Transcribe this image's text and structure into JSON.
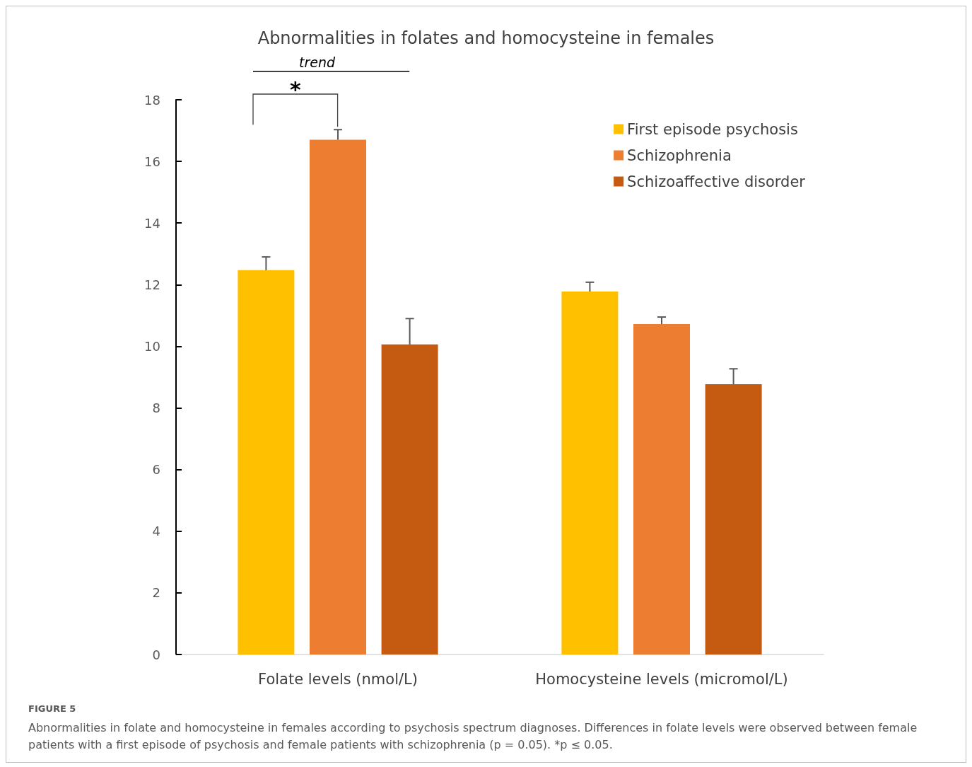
{
  "chart_data": {
    "type": "bar",
    "title": "Abnormalities in folates and homocysteine in females",
    "categories": [
      "Folate levels (nmol/L)",
      "Homocysteine levels (micromol/L)"
    ],
    "series": [
      {
        "name": "First episode psychosis",
        "color": "#ffc000",
        "values": [
          12.47,
          11.78
        ],
        "errors": [
          [
            12.47,
            12.9
          ],
          [
            11.78,
            12.08
          ]
        ]
      },
      {
        "name": "Schizophrenia",
        "color": "#ed7d31",
        "values": [
          16.7,
          10.72
        ],
        "errors": [
          [
            16.7,
            17.03
          ],
          [
            10.72,
            10.95
          ]
        ]
      },
      {
        "name": "Schizoaffective disorder",
        "color": "#c55a11",
        "values": [
          10.06,
          8.77
        ],
        "errors": [
          [
            10.06,
            10.9
          ],
          [
            8.77,
            9.27
          ]
        ]
      }
    ],
    "ylim": [
      0,
      18
    ],
    "yticks": [
      0,
      2,
      4,
      6,
      8,
      10,
      12,
      14,
      16,
      18
    ],
    "grid": false,
    "legend": "top right",
    "annotations": [
      "trend",
      "*",
      "FIGURE 5",
      "Abnormalities in folate and homocysteine in females according to psychosis spectrum diagnoses. Differences in folate levels were observed between female patients with a first episode of psychosis and female patients with schizophrenia (p = 0.05). *p ≤ 0.05."
    ]
  }
}
